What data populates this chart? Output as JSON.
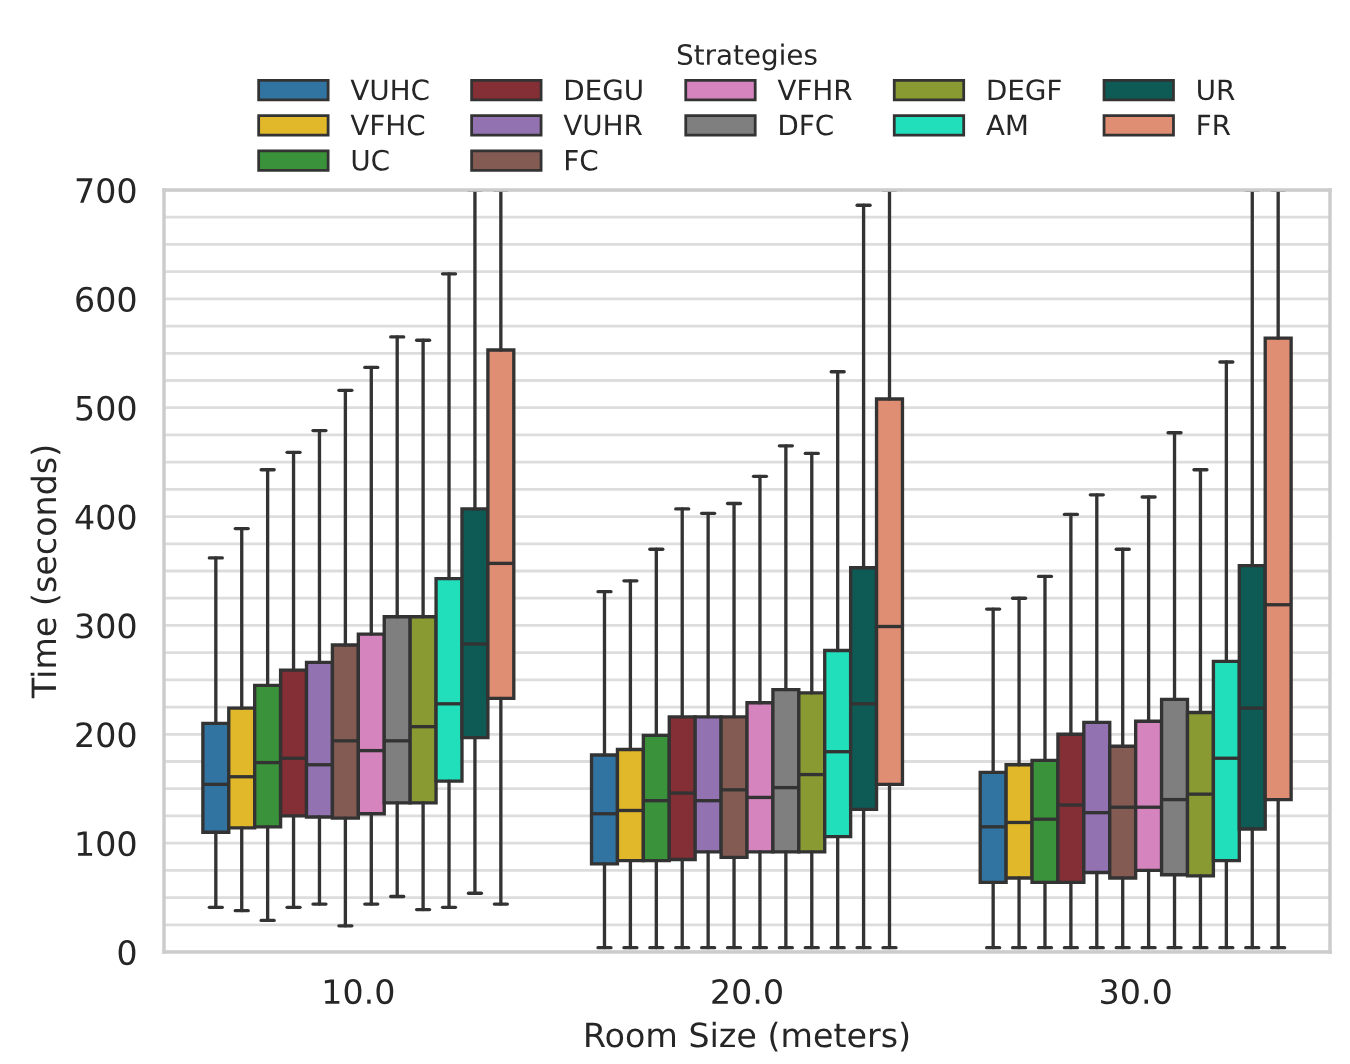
{
  "chart_data": {
    "type": "box",
    "xlabel": "Room Size (meters)",
    "ylabel": "Time (seconds)",
    "legend_title": "Strategies",
    "legend": "top",
    "grid": "y",
    "categories": [
      "10.0",
      "20.0",
      "30.0"
    ],
    "ylim": [
      0,
      700
    ],
    "yticks": [
      0,
      {
        "value": 25,
        "label": null
      },
      {
        "value": 50,
        "label": null
      },
      {
        "value": 75,
        "label": null
      },
      100,
      {
        "value": 125,
        "label": null
      },
      {
        "value": 150,
        "label": null
      },
      {
        "value": 175,
        "label": null
      },
      200,
      {
        "value": 225,
        "label": null
      },
      {
        "value": 250,
        "label": null
      },
      {
        "value": 275,
        "label": null
      },
      300,
      {
        "value": 325,
        "label": null
      },
      {
        "value": 350,
        "label": null
      },
      {
        "value": 375,
        "label": null
      },
      400,
      {
        "value": 425,
        "label": null
      },
      {
        "value": 450,
        "label": null
      },
      {
        "value": 475,
        "label": null
      },
      500,
      {
        "value": 525,
        "label": null
      },
      {
        "value": 550,
        "label": null
      },
      {
        "value": 575,
        "label": null
      },
      600,
      {
        "value": 625,
        "label": null
      },
      {
        "value": 650,
        "label": null
      },
      {
        "value": 675,
        "label": null
      },
      700
    ],
    "series": [
      {
        "name": "VUHC",
        "color": "#3274a1",
        "boxes": [
          {
            "low": 41,
            "q1": 110,
            "median": 154,
            "q3": 210,
            "high": 362
          },
          {
            "low": 4,
            "q1": 81,
            "median": 127,
            "q3": 181,
            "high": 331
          },
          {
            "low": 4,
            "q1": 64,
            "median": 115,
            "q3": 165,
            "high": 315
          }
        ]
      },
      {
        "name": "VFHC",
        "color": "#e1b829",
        "boxes": [
          {
            "low": 38,
            "q1": 114,
            "median": 161,
            "q3": 224,
            "high": 389
          },
          {
            "low": 4,
            "q1": 84,
            "median": 130,
            "q3": 186,
            "high": 341
          },
          {
            "low": 4,
            "q1": 68,
            "median": 119,
            "q3": 172,
            "high": 325
          }
        ]
      },
      {
        "name": "UC",
        "color": "#3a923a",
        "boxes": [
          {
            "low": 29,
            "q1": 115,
            "median": 174,
            "q3": 245,
            "high": 443
          },
          {
            "low": 4,
            "q1": 84,
            "median": 139,
            "q3": 199,
            "high": 370
          },
          {
            "low": 4,
            "q1": 64,
            "median": 122,
            "q3": 176,
            "high": 345
          }
        ]
      },
      {
        "name": "DEGU",
        "color": "#842e35",
        "boxes": [
          {
            "low": 41,
            "q1": 125,
            "median": 178,
            "q3": 259,
            "high": 459
          },
          {
            "low": 4,
            "q1": 85,
            "median": 146,
            "q3": 216,
            "high": 407
          },
          {
            "low": 4,
            "q1": 64,
            "median": 135,
            "q3": 200,
            "high": 402
          }
        ]
      },
      {
        "name": "VUHR",
        "color": "#9372b2",
        "boxes": [
          {
            "low": 44,
            "q1": 124,
            "median": 172,
            "q3": 266,
            "high": 479
          },
          {
            "low": 4,
            "q1": 92,
            "median": 139,
            "q3": 216,
            "high": 403
          },
          {
            "low": 4,
            "q1": 73,
            "median": 128,
            "q3": 211,
            "high": 420
          }
        ]
      },
      {
        "name": "FC",
        "color": "#845b53",
        "boxes": [
          {
            "low": 24,
            "q1": 123,
            "median": 194,
            "q3": 282,
            "high": 516
          },
          {
            "low": 4,
            "q1": 87,
            "median": 149,
            "q3": 216,
            "high": 412
          },
          {
            "low": 4,
            "q1": 68,
            "median": 133,
            "q3": 189,
            "high": 370
          }
        ]
      },
      {
        "name": "VFHR",
        "color": "#d684bd",
        "boxes": [
          {
            "low": 44,
            "q1": 127,
            "median": 185,
            "q3": 292,
            "high": 537
          },
          {
            "low": 4,
            "q1": 92,
            "median": 142,
            "q3": 229,
            "high": 437
          },
          {
            "low": 4,
            "q1": 75,
            "median": 133,
            "q3": 212,
            "high": 418
          }
        ]
      },
      {
        "name": "DFC",
        "color": "#7f7f7f",
        "boxes": [
          {
            "low": 51,
            "q1": 137,
            "median": 194,
            "q3": 308,
            "high": 565
          },
          {
            "low": 4,
            "q1": 92,
            "median": 151,
            "q3": 241,
            "high": 465
          },
          {
            "low": 4,
            "q1": 71,
            "median": 140,
            "q3": 232,
            "high": 477
          }
        ]
      },
      {
        "name": "DEGF",
        "color": "#8a9a33",
        "boxes": [
          {
            "low": 39,
            "q1": 137,
            "median": 207,
            "q3": 308,
            "high": 562
          },
          {
            "low": 4,
            "q1": 92,
            "median": 163,
            "q3": 238,
            "high": 458
          },
          {
            "low": 4,
            "q1": 70,
            "median": 145,
            "q3": 220,
            "high": 443
          }
        ]
      },
      {
        "name": "AM",
        "color": "#22dfbc",
        "boxes": [
          {
            "low": 41,
            "q1": 157,
            "median": 228,
            "q3": 343,
            "high": 623
          },
          {
            "low": 4,
            "q1": 106,
            "median": 184,
            "q3": 277,
            "high": 533
          },
          {
            "low": 4,
            "q1": 84,
            "median": 178,
            "q3": 267,
            "high": 542
          }
        ]
      },
      {
        "name": "UR",
        "color": "#0e5a55",
        "boxes": [
          {
            "low": 54,
            "q1": 197,
            "median": 283,
            "q3": 407,
            "high": 700
          },
          {
            "low": 4,
            "q1": 131,
            "median": 228,
            "q3": 353,
            "high": 686
          },
          {
            "low": 4,
            "q1": 113,
            "median": 224,
            "q3": 355,
            "high": 700
          }
        ]
      },
      {
        "name": "FR",
        "color": "#df8d73",
        "boxes": [
          {
            "low": 44,
            "q1": 233,
            "median": 357,
            "q3": 553,
            "high": 700
          },
          {
            "low": 4,
            "q1": 154,
            "median": 299,
            "q3": 508,
            "high": 700
          },
          {
            "low": 4,
            "q1": 140,
            "median": 319,
            "q3": 564,
            "high": 700
          }
        ]
      }
    ]
  }
}
